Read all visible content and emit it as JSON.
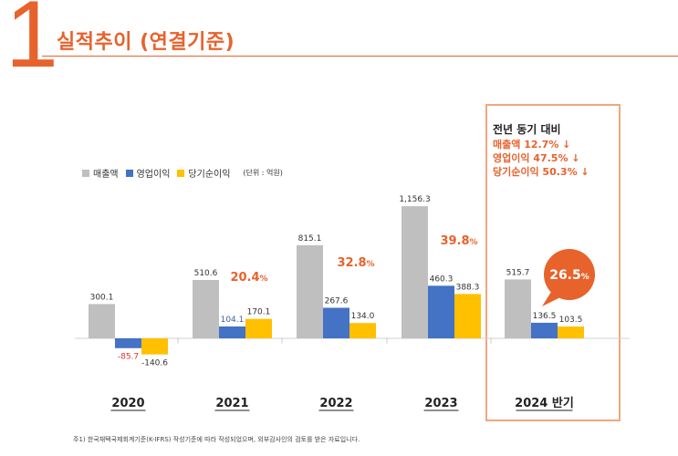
{
  "page": {
    "number": "1",
    "title": "실적추이 (연결기준)",
    "footnote": "주1) 한국채택국제회계기준(K-IFRS) 작성기준에 따라 작성되었으며, 외부감사인의 검토를 받은 자료입니다."
  },
  "legend": {
    "items": [
      {
        "label": "매출액",
        "color": "#bfbfbf"
      },
      {
        "label": "영업이익",
        "color": "#4472c4"
      },
      {
        "label": "당기순이익",
        "color": "#ffc000"
      }
    ],
    "unit": "(단위 : 억원)"
  },
  "yoy": {
    "title": "전년 동기 대비",
    "lines": [
      "매출액 12.7% ↓",
      "영업이익 47.5% ↓",
      "당기순이익 50.3% ↓"
    ]
  },
  "chart_data": {
    "type": "bar",
    "categories": [
      "2020",
      "2021",
      "2022",
      "2023",
      "2024 반기"
    ],
    "series": [
      {
        "name": "매출액",
        "color": "#bfbfbf",
        "values": [
          300.1,
          510.6,
          815.1,
          1156.3,
          515.7
        ],
        "labels": [
          "300.1",
          "510.6",
          "815.1",
          "1,156.3",
          "515.7"
        ]
      },
      {
        "name": "영업이익",
        "color": "#4472c4",
        "values": [
          -85.7,
          104.1,
          267.6,
          460.3,
          136.5
        ],
        "labels": [
          "-85.7",
          "104.1",
          "267.6",
          "460.3",
          "136.5"
        ]
      },
      {
        "name": "당기순이익",
        "color": "#ffc000",
        "values": [
          -140.6,
          170.1,
          134.0,
          388.3,
          103.5
        ],
        "labels": [
          "-140.6",
          "170.1",
          "134.0",
          "388.3",
          "103.5"
        ]
      }
    ],
    "growth_rates": [
      "",
      "20.4%",
      "32.8%",
      "39.8%",
      "26.5%"
    ],
    "accent_color": "#e8622c",
    "negative_label_color": "#e03030"
  }
}
